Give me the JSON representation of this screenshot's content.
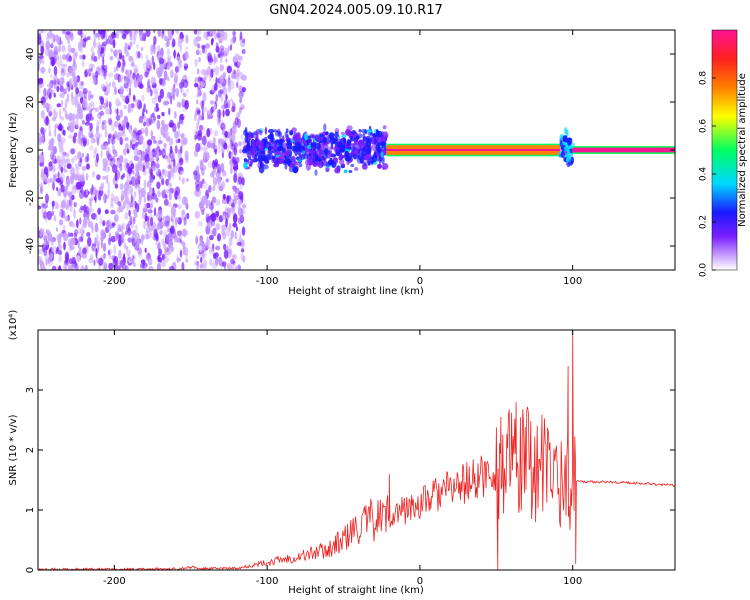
{
  "chart_data": [
    {
      "type": "heatmap",
      "title": "GN04.2024.005.09.10.R17",
      "xlabel": "Height of straight line (km)",
      "ylabel": "Frequency (Hz)",
      "xlim": [
        -250,
        167
      ],
      "ylim": [
        -50,
        50
      ],
      "xticks": [
        -200,
        -100,
        0,
        100
      ],
      "yticks": [
        -40,
        -20,
        0,
        20,
        40
      ],
      "colorbar": {
        "label": "Normalized spectral amplitude",
        "range": [
          0,
          1
        ],
        "ticks": [
          "0.0",
          "0.2",
          "0.4",
          "0.6",
          "0.8"
        ],
        "colormap": [
          "#ffffff",
          "#c8a0ff",
          "#7a1fff",
          "#1a1aff",
          "#00d8ff",
          "#00ff60",
          "#ffff00",
          "#ff8000",
          "#ff2020",
          "#ff1493"
        ]
      },
      "regions": [
        {
          "x": [
            -250,
            -152
          ],
          "freq_half_width": 50,
          "level": "0.05-0.25",
          "pattern": "scattered"
        },
        {
          "x": [
            -152,
            -147
          ],
          "freq_half_width": 50,
          "level": "0.02",
          "pattern": "sparse"
        },
        {
          "x": [
            -147,
            -115
          ],
          "freq_half_width": 50,
          "level": "0.05-0.25",
          "pattern": "scattered"
        },
        {
          "x": [
            -115,
            -22
          ],
          "freq_half_width": 10,
          "level": "0.2-0.4",
          "pattern": "band"
        },
        {
          "x": [
            -22,
            92
          ],
          "freq_half_width": 2,
          "level": "0.8-0.95",
          "pattern": "narrow line"
        },
        {
          "x": [
            92,
            100
          ],
          "freq_half_width": 8,
          "level": "0.3-0.5",
          "pattern": "band"
        },
        {
          "x": [
            100,
            167
          ],
          "freq_half_width": 1,
          "level": "0.95",
          "pattern": "narrow line"
        }
      ]
    },
    {
      "type": "line",
      "title": "",
      "xlabel": "Height of straight line (km)",
      "ylabel": "SNR (10 * v/v)",
      "yscale_label": "(x10⁴)",
      "xlim": [
        -250,
        167
      ],
      "ylim": [
        0,
        4
      ],
      "xticks": [
        -200,
        -100,
        0,
        100
      ],
      "yticks": [
        0,
        1,
        2,
        3
      ],
      "line_color": "#ee2222",
      "series": [
        {
          "x": [
            -250,
            -200,
            -160,
            -148,
            -145,
            -120,
            -110,
            -100,
            -90,
            -80,
            -70,
            -60,
            -50,
            -40,
            -30,
            -20,
            -10,
            0,
            10,
            20,
            30,
            40,
            50,
            60,
            65,
            70,
            80,
            90,
            95,
            100,
            105,
            110,
            120,
            130,
            140,
            150,
            160,
            167
          ],
          "y": [
            0.01,
            0.01,
            0.02,
            0.05,
            0.02,
            0.03,
            0.08,
            0.12,
            0.18,
            0.22,
            0.28,
            0.35,
            0.5,
            0.72,
            0.85,
            0.92,
            1.0,
            1.1,
            1.25,
            1.35,
            1.45,
            1.55,
            1.65,
            1.75,
            1.7,
            1.8,
            1.7,
            1.6,
            1.4,
            1.5,
            1.48,
            1.47,
            1.47,
            1.46,
            1.45,
            1.44,
            1.42,
            1.41
          ]
        }
      ],
      "spikes": [
        {
          "x": -20,
          "y": 1.6
        },
        {
          "x": 51,
          "y": 0.0
        },
        {
          "x": 53,
          "y": 2.55
        },
        {
          "x": 63,
          "y": 2.8
        },
        {
          "x": 67,
          "y": 2.2
        },
        {
          "x": 80,
          "y": 2.0
        },
        {
          "x": 97,
          "y": 3.4
        },
        {
          "x": 100,
          "y": 4.0
        },
        {
          "x": 102,
          "y": 0.1
        }
      ]
    }
  ]
}
